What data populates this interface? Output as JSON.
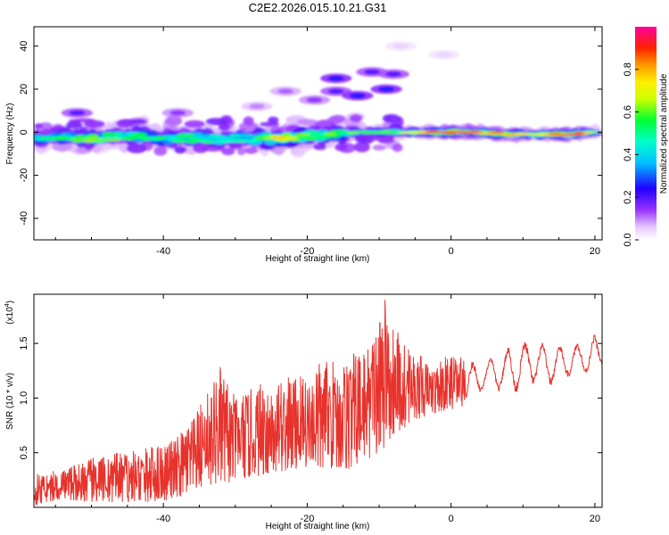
{
  "title": "C2E2.2026.015.10.21.G31",
  "chart_data": [
    {
      "type": "heatmap",
      "title": "C2E2.2026.015.10.21.G31",
      "xlabel": "Height of straight line (km)",
      "ylabel": "Frequency (Hz)",
      "xlim": [
        -58,
        21
      ],
      "ylim": [
        -50,
        49
      ],
      "xticks": [
        -40,
        -20,
        0,
        20
      ],
      "yticks": [
        -40,
        -20,
        0,
        20,
        40
      ],
      "colorbar": {
        "label": "Normalized spectral amplitude",
        "range": [
          0.0,
          1.0
        ],
        "ticks": [
          0.0,
          0.2,
          0.4,
          0.6,
          0.8
        ],
        "tick_labels": [
          "0.0",
          "0.2",
          "0.4",
          "0.6",
          "0.8"
        ],
        "colormap": "rainbow (white-violet-blue-cyan-green-yellow-orange-red-magenta)"
      },
      "main_band": [
        {
          "height_km": -57,
          "freq_hz": -3,
          "amp": 0.45
        },
        {
          "height_km": -54,
          "freq_hz": -2,
          "amp": 0.5
        },
        {
          "height_km": -50,
          "freq_hz": -3,
          "amp": 0.55
        },
        {
          "height_km": -46,
          "freq_hz": -2,
          "amp": 0.5
        },
        {
          "height_km": -43,
          "freq_hz": -2,
          "amp": 0.55
        },
        {
          "height_km": -40,
          "freq_hz": -3,
          "amp": 0.45
        },
        {
          "height_km": -36,
          "freq_hz": -3,
          "amp": 0.55
        },
        {
          "height_km": -32,
          "freq_hz": -3,
          "amp": 0.5
        },
        {
          "height_km": -28,
          "freq_hz": -3,
          "amp": 0.45
        },
        {
          "height_km": -24,
          "freq_hz": -3,
          "amp": 0.7
        },
        {
          "height_km": -20,
          "freq_hz": -2,
          "amp": 0.6
        },
        {
          "height_km": -16,
          "freq_hz": -1,
          "amp": 0.5
        },
        {
          "height_km": -12,
          "freq_hz": 0,
          "amp": 0.55
        },
        {
          "height_km": -8,
          "freq_hz": 0,
          "amp": 0.55
        },
        {
          "height_km": -4,
          "freq_hz": 0,
          "amp": 0.7
        },
        {
          "height_km": 0,
          "freq_hz": 0,
          "amp": 0.95
        },
        {
          "height_km": 4,
          "freq_hz": 0,
          "amp": 0.8
        },
        {
          "height_km": 8,
          "freq_hz": -1,
          "amp": 0.75
        },
        {
          "height_km": 12,
          "freq_hz": -1,
          "amp": 0.6
        },
        {
          "height_km": 16,
          "freq_hz": -1,
          "amp": 0.9
        },
        {
          "height_km": 20,
          "freq_hz": 0,
          "amp": 0.55
        }
      ],
      "secondary_features": [
        {
          "height_km": -52,
          "freq_hz": 9,
          "amp": 0.2
        },
        {
          "height_km": -38,
          "freq_hz": 9,
          "amp": 0.15
        },
        {
          "height_km": -27,
          "freq_hz": 12,
          "amp": 0.1
        },
        {
          "height_km": -23,
          "freq_hz": 19,
          "amp": 0.12
        },
        {
          "height_km": -19,
          "freq_hz": 15,
          "amp": 0.15
        },
        {
          "height_km": -16,
          "freq_hz": 19,
          "amp": 0.2
        },
        {
          "height_km": -13,
          "freq_hz": 17,
          "amp": 0.25
        },
        {
          "height_km": -16,
          "freq_hz": 25,
          "amp": 0.25
        },
        {
          "height_km": -11,
          "freq_hz": 28,
          "amp": 0.2
        },
        {
          "height_km": -9,
          "freq_hz": 20,
          "amp": 0.25
        },
        {
          "height_km": -8,
          "freq_hz": 27,
          "amp": 0.2
        },
        {
          "height_km": -7,
          "freq_hz": 40,
          "amp": 0.05
        },
        {
          "height_km": -1,
          "freq_hz": 36,
          "amp": 0.05
        }
      ]
    },
    {
      "type": "line",
      "xlabel": "Height of straight line (km)",
      "ylabel": "SNR (10 * v/v)",
      "y_scale_label": "(x10^4)",
      "y_scale_base": "(x10",
      "y_scale_exp": "4",
      "y_scale_close": ")",
      "xlim": [
        -58,
        21
      ],
      "ylim": [
        0.0,
        1.95
      ],
      "xticks": [
        -40,
        -20,
        0,
        20
      ],
      "yticks": [
        0.5,
        1.0,
        1.5
      ],
      "ytick_labels": [
        "0.5",
        "1.0",
        "1.5"
      ],
      "color": "#e8322c",
      "envelope": {
        "x": [
          -58,
          -54,
          -50,
          -46,
          -42,
          -38,
          -36,
          -34,
          -32,
          -30,
          -26,
          -22,
          -18,
          -14,
          -12,
          -10,
          -9,
          -7,
          -5,
          -3,
          0,
          3,
          5,
          8,
          11,
          14,
          17,
          20,
          21
        ],
        "low": [
          0.02,
          0.08,
          0.05,
          0.05,
          0.05,
          0.08,
          0.15,
          0.2,
          0.2,
          0.25,
          0.3,
          0.35,
          0.35,
          0.35,
          0.45,
          0.45,
          0.6,
          0.7,
          0.8,
          0.85,
          0.9,
          0.95,
          1.1,
          1.0,
          1.1,
          1.1,
          1.2,
          1.2,
          1.3
        ],
        "high": [
          0.3,
          0.35,
          0.45,
          0.5,
          0.55,
          0.65,
          0.8,
          1.05,
          1.3,
          1.0,
          1.15,
          1.2,
          1.35,
          1.4,
          1.45,
          1.75,
          1.95,
          1.55,
          1.45,
          1.3,
          1.4,
          1.35,
          1.35,
          1.5,
          1.55,
          1.5,
          1.5,
          1.6,
          1.5
        ]
      }
    }
  ]
}
